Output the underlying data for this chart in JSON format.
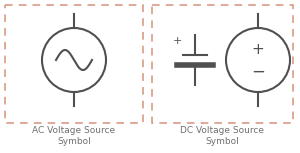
{
  "bg_color": "#ffffff",
  "dashed_box_color": "#d4937a",
  "circle_color": "#505050",
  "line_color": "#505050",
  "text_color": "#707070",
  "label_ac": "AC Voltage Source\nSymbol",
  "label_dc": "DC Voltage Source\nSymbol",
  "figw": 3.0,
  "figh": 1.53,
  "dpi": 100
}
